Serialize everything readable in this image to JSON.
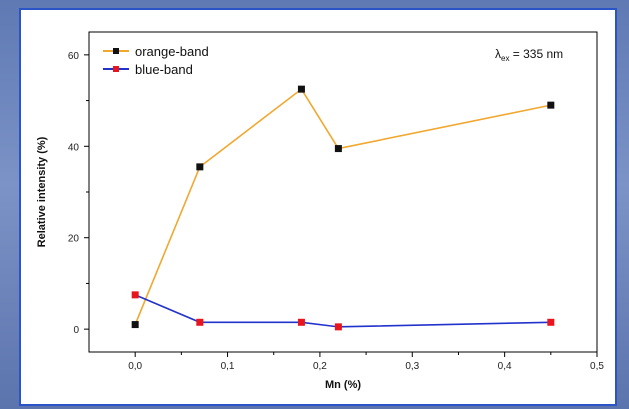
{
  "chart_data": {
    "type": "line",
    "xlabel": "Mn (%)",
    "ylabel": "Relative intensity (%)",
    "xlim": [
      -0.05,
      0.5
    ],
    "ylim": [
      -5,
      65
    ],
    "xticks": [
      0.0,
      0.1,
      0.2,
      0.3,
      0.4,
      0.5
    ],
    "xtick_labels": [
      "0,0",
      "0,1",
      "0,2",
      "0,3",
      "0,4",
      "0,5"
    ],
    "yticks": [
      0,
      20,
      40,
      60
    ],
    "ytick_labels": [
      "0",
      "20",
      "40",
      "60"
    ],
    "x": [
      0.0,
      0.07,
      0.18,
      0.22,
      0.45
    ],
    "series": [
      {
        "name": "orange-band",
        "line_color": "#f0a830",
        "marker_color": "#111111",
        "values": [
          1,
          35.5,
          52.5,
          39.5,
          49
        ]
      },
      {
        "name": "blue-band",
        "line_color": "#2233cc",
        "marker_color": "#e8141e",
        "values": [
          7.5,
          1.5,
          1.5,
          0.5,
          1.5
        ]
      }
    ],
    "annotation": {
      "prefix": "λ",
      "subscript": "ex",
      "suffix": " = 335 nm"
    },
    "legend_position": "top-left",
    "grid": false
  }
}
